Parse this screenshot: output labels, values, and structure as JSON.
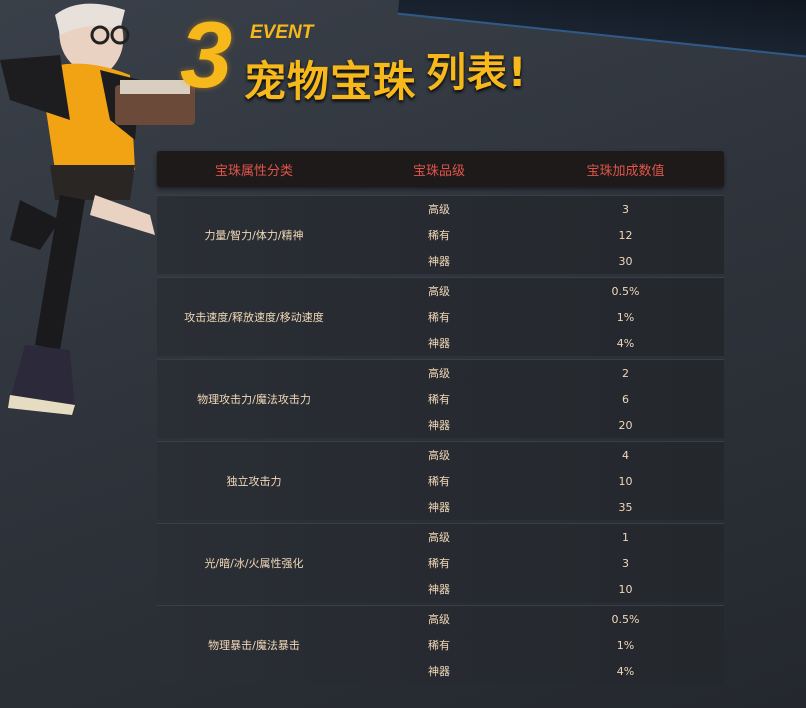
{
  "header": {
    "number": "3",
    "event": "EVENT",
    "title_main": "宠物宝珠",
    "title_sub": "列表!"
  },
  "table": {
    "columns": [
      "宝珠属性分类",
      "宝珠品级",
      "宝珠加成数值"
    ],
    "groups": [
      {
        "category": "力量/智力/体力/精神",
        "rows": [
          {
            "grade": "高级",
            "value": "3"
          },
          {
            "grade": "稀有",
            "value": "12"
          },
          {
            "grade": "神器",
            "value": "30"
          }
        ]
      },
      {
        "category": "攻击速度/释放速度/移动速度",
        "rows": [
          {
            "grade": "高级",
            "value": "0.5%"
          },
          {
            "grade": "稀有",
            "value": "1%"
          },
          {
            "grade": "神器",
            "value": "4%"
          }
        ]
      },
      {
        "category": "物理攻击力/魔法攻击力",
        "rows": [
          {
            "grade": "高级",
            "value": "2"
          },
          {
            "grade": "稀有",
            "value": "6"
          },
          {
            "grade": "神器",
            "value": "20"
          }
        ]
      },
      {
        "category": "独立攻击力",
        "rows": [
          {
            "grade": "高级",
            "value": "4"
          },
          {
            "grade": "稀有",
            "value": "10"
          },
          {
            "grade": "神器",
            "value": "35"
          }
        ]
      },
      {
        "category": "光/暗/冰/火属性强化",
        "rows": [
          {
            "grade": "高级",
            "value": "1"
          },
          {
            "grade": "稀有",
            "value": "3"
          },
          {
            "grade": "神器",
            "value": "10"
          }
        ]
      },
      {
        "category": "物理暴击/魔法暴击",
        "rows": [
          {
            "grade": "高级",
            "value": "0.5%"
          },
          {
            "grade": "稀有",
            "value": "1%"
          },
          {
            "grade": "神器",
            "value": "4%"
          }
        ]
      }
    ]
  },
  "colors": {
    "title": "#f6b81a",
    "header_text": "#e0554a",
    "cell_text": "#f2d9b8"
  }
}
